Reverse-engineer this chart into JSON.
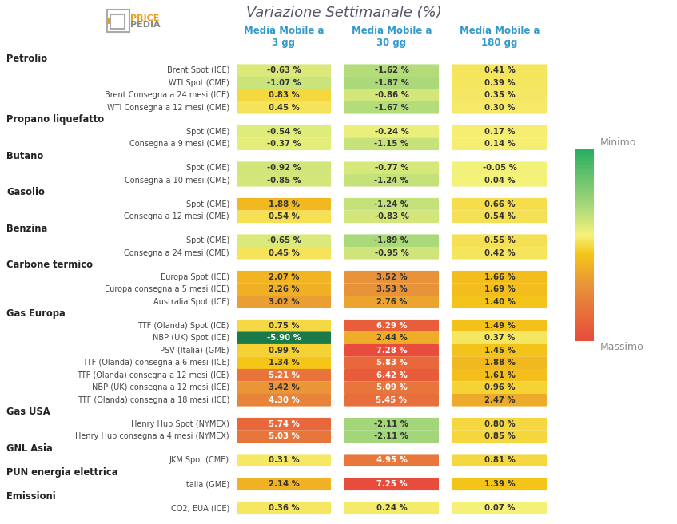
{
  "title": "Variazione Settimanale (%)",
  "col_headers": [
    "Media Mobile a\n3 gg",
    "Media Mobile a\n30 gg",
    "Media Mobile a\n180 gg"
  ],
  "categories": [
    {
      "name": "Petrolio",
      "bold": true,
      "is_header": true
    },
    {
      "name": "Brent Spot (ICE)",
      "bold": false,
      "is_header": false,
      "values": [
        -0.63,
        -1.62,
        0.41
      ]
    },
    {
      "name": "WTI Spot (CME)",
      "bold": false,
      "is_header": false,
      "values": [
        -1.07,
        -1.87,
        0.39
      ]
    },
    {
      "name": "Brent Consegna a 24 mesi (ICE)",
      "bold": false,
      "is_header": false,
      "values": [
        0.83,
        -0.86,
        0.35
      ]
    },
    {
      "name": "WTI Consegna a 12 mesi (CME)",
      "bold": false,
      "is_header": false,
      "values": [
        0.45,
        -1.67,
        0.3
      ]
    },
    {
      "name": "Propano liquefatto",
      "bold": true,
      "is_header": true
    },
    {
      "name": "Spot (CME)",
      "bold": false,
      "is_header": false,
      "values": [
        -0.54,
        -0.24,
        0.17
      ]
    },
    {
      "name": "Consegna a 9 mesi (CME)",
      "bold": false,
      "is_header": false,
      "values": [
        -0.37,
        -1.15,
        0.14
      ]
    },
    {
      "name": "Butano",
      "bold": true,
      "is_header": true
    },
    {
      "name": "Spot (CME)",
      "bold": false,
      "is_header": false,
      "values": [
        -0.92,
        -0.77,
        -0.05
      ]
    },
    {
      "name": "Consegna a 10 mesi (CME)",
      "bold": false,
      "is_header": false,
      "values": [
        -0.85,
        -1.24,
        0.04
      ]
    },
    {
      "name": "Gasolio",
      "bold": true,
      "is_header": true
    },
    {
      "name": "Spot (CME)",
      "bold": false,
      "is_header": false,
      "values": [
        1.88,
        -1.24,
        0.66
      ]
    },
    {
      "name": "Consegna a 12 mesi (CME)",
      "bold": false,
      "is_header": false,
      "values": [
        0.54,
        -0.83,
        0.54
      ]
    },
    {
      "name": "Benzina",
      "bold": true,
      "is_header": true
    },
    {
      "name": "Spot (CME)",
      "bold": false,
      "is_header": false,
      "values": [
        -0.65,
        -1.89,
        0.55
      ]
    },
    {
      "name": "Consegna a 24 mesi (CME)",
      "bold": false,
      "is_header": false,
      "values": [
        0.45,
        -0.95,
        0.42
      ]
    },
    {
      "name": "Carbone termico",
      "bold": true,
      "is_header": true
    },
    {
      "name": "Europa Spot (ICE)",
      "bold": false,
      "is_header": false,
      "values": [
        2.07,
        3.52,
        1.66
      ]
    },
    {
      "name": "Europa consegna a 5 mesi (ICE)",
      "bold": false,
      "is_header": false,
      "values": [
        2.26,
        3.53,
        1.69
      ]
    },
    {
      "name": "Australia Spot (ICE)",
      "bold": false,
      "is_header": false,
      "values": [
        3.02,
        2.76,
        1.4
      ]
    },
    {
      "name": "Gas Europa",
      "bold": true,
      "is_header": true
    },
    {
      "name": "TTF (Olanda) Spot (ICE)",
      "bold": false,
      "is_header": false,
      "values": [
        0.75,
        6.29,
        1.49
      ]
    },
    {
      "name": "NBP (UK) Spot (ICE)",
      "bold": false,
      "is_header": false,
      "values": [
        -5.9,
        2.44,
        0.37
      ]
    },
    {
      "name": "PSV (Italia) (GME)",
      "bold": false,
      "is_header": false,
      "values": [
        0.99,
        7.28,
        1.45
      ]
    },
    {
      "name": "TTF (Olanda) consegna a 6 mesi (ICE)",
      "bold": false,
      "is_header": false,
      "values": [
        1.34,
        5.83,
        1.88
      ]
    },
    {
      "name": "TTF (Olanda) consegna a 12 mesi (ICE)",
      "bold": false,
      "is_header": false,
      "values": [
        5.21,
        6.42,
        1.61
      ]
    },
    {
      "name": "NBP (UK) consegna a 12 mesi (ICE)",
      "bold": false,
      "is_header": false,
      "values": [
        3.42,
        5.09,
        0.96
      ]
    },
    {
      "name": "TTF (Olanda) consegna a 18 mesi (ICE)",
      "bold": false,
      "is_header": false,
      "values": [
        4.3,
        5.45,
        2.47
      ]
    },
    {
      "name": "Gas USA",
      "bold": true,
      "is_header": true
    },
    {
      "name": "Henry Hub Spot (NYMEX)",
      "bold": false,
      "is_header": false,
      "values": [
        5.74,
        -2.11,
        0.8
      ]
    },
    {
      "name": "Henry Hub consegna a 4 mesi (NYMEX)",
      "bold": false,
      "is_header": false,
      "values": [
        5.03,
        -2.11,
        0.85
      ]
    },
    {
      "name": "GNL Asia",
      "bold": true,
      "is_header": true
    },
    {
      "name": "JKM Spot (CME)",
      "bold": false,
      "is_header": false,
      "values": [
        0.31,
        4.95,
        0.81
      ]
    },
    {
      "name": "PUN energia elettrica",
      "bold": true,
      "is_header": true
    },
    {
      "name": "Italia (GME)",
      "bold": false,
      "is_header": false,
      "values": [
        2.14,
        7.25,
        1.39
      ]
    },
    {
      "name": "Emissioni",
      "bold": true,
      "is_header": true
    },
    {
      "name": "CO2, EUA (ICE)",
      "bold": false,
      "is_header": false,
      "values": [
        0.36,
        0.24,
        0.07
      ]
    }
  ],
  "vmin": -5.9,
  "vmax": 7.28,
  "legend_label_min": "Minimo",
  "legend_label_max": "Massimo",
  "col_header_color": "#3399cc",
  "background_color": "#ffffff",
  "title_color": "#555566",
  "row_label_color": "#444444",
  "header_row_color": "#222222",
  "cmap_colors": [
    "#27ae60",
    "#a8d87a",
    "#f5f27a",
    "#f5c518",
    "#e8913a",
    "#e84c3c"
  ],
  "cmap_stops": [
    0.0,
    0.3,
    0.45,
    0.55,
    0.72,
    1.0
  ],
  "dark_green": "#1a7a4a",
  "logo_orange": "#e8a020",
  "logo_gray": "#888888"
}
